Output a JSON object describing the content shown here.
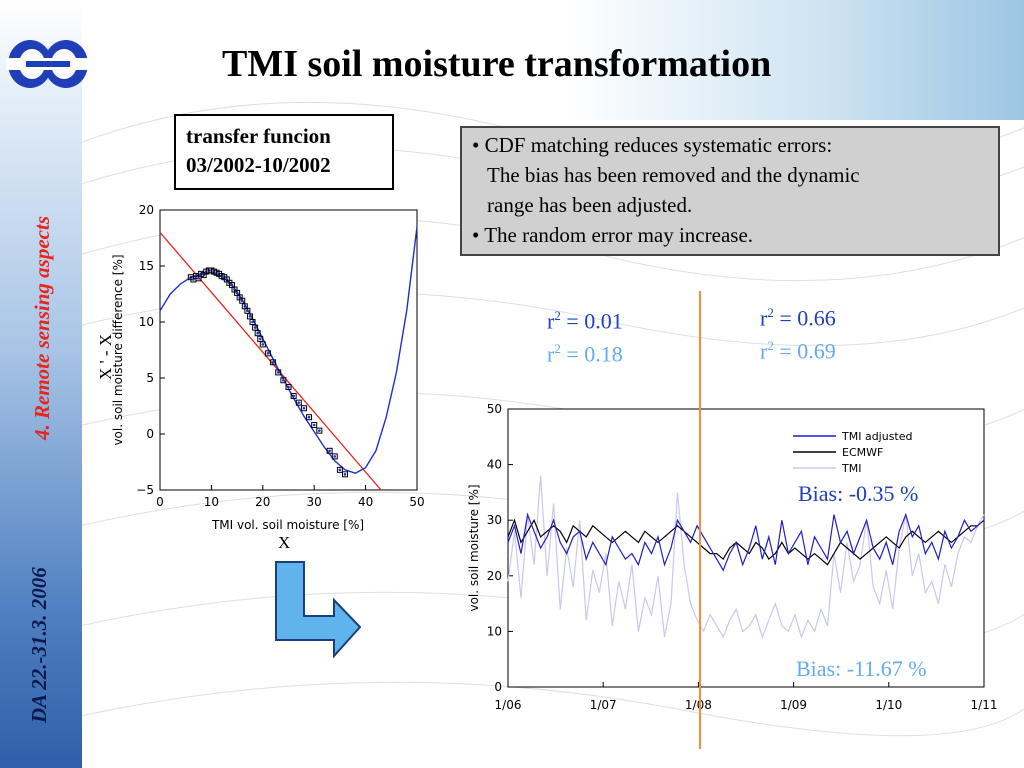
{
  "slide": {
    "title": "TMI soil moisture transformation",
    "side_section": "4. Remote sensing aspects",
    "side_date": "DA 22.-31.3. 2006"
  },
  "transfer_box": {
    "line1": "transfer funcion",
    "line2": "03/2002-10/2002"
  },
  "notes": [
    "• CDF matching reduces systematic errors:",
    "The bias has been removed and the dynamic",
    "range has been adjusted.",
    "• The random error may increase."
  ],
  "stats": {
    "r2_prefix": "r",
    "r2_suffix": " = ",
    "before_dark": "0.01",
    "before_light": "0.18",
    "after_dark": "0.66",
    "after_light": "0.69",
    "bias_adjusted": "Bias: -0.35 %",
    "bias_raw": "Bias: -11.67 %"
  },
  "annotations": {
    "x_label": "X",
    "y_label": "X ' - X"
  },
  "colors": {
    "adjusted": "#1f1fc8",
    "ecmwf": "#000000",
    "tmi": "#c8c8f0",
    "regression": "#e8241c",
    "marker": "#1f2fd0",
    "divider": "#f0903a",
    "arrow_fill": "#5fb4ee"
  },
  "chart_data": [
    {
      "type": "scatter",
      "xlabel": "TMI vol. soil moisture [%]",
      "ylabel": "vol. soil moisture difference [%]",
      "xlim": [
        0,
        50
      ],
      "ylim": [
        -5,
        20
      ],
      "xticks": [
        0,
        10,
        20,
        30,
        40,
        50
      ],
      "yticks": [
        -5,
        0,
        5,
        10,
        15,
        20
      ],
      "points": [
        [
          6,
          14.0
        ],
        [
          6.5,
          13.8
        ],
        [
          7,
          14.1
        ],
        [
          7.5,
          13.9
        ],
        [
          8,
          14.3
        ],
        [
          8.5,
          14.2
        ],
        [
          9,
          14.5
        ],
        [
          9.5,
          14.6
        ],
        [
          10,
          14.6
        ],
        [
          10.5,
          14.5
        ],
        [
          11,
          14.4
        ],
        [
          11.5,
          14.3
        ],
        [
          12,
          14.1
        ],
        [
          12.5,
          14.0
        ],
        [
          13,
          13.8
        ],
        [
          13.5,
          13.5
        ],
        [
          14,
          13.3
        ],
        [
          14.5,
          12.9
        ],
        [
          15,
          12.6
        ],
        [
          15.5,
          12.2
        ],
        [
          16,
          11.9
        ],
        [
          16.5,
          11.4
        ],
        [
          17,
          11.0
        ],
        [
          17.5,
          10.5
        ],
        [
          18,
          10.0
        ],
        [
          18.5,
          9.5
        ],
        [
          19,
          9.0
        ],
        [
          19.5,
          8.5
        ],
        [
          20,
          8.0
        ],
        [
          21,
          7.2
        ],
        [
          22,
          6.4
        ],
        [
          23,
          5.5
        ],
        [
          24,
          4.8
        ],
        [
          25,
          4.2
        ],
        [
          26,
          3.4
        ],
        [
          27,
          2.8
        ],
        [
          28,
          2.3
        ],
        [
          29,
          1.5
        ],
        [
          30,
          0.8
        ],
        [
          31,
          0.3
        ],
        [
          33,
          -1.5
        ],
        [
          34,
          -2.0
        ],
        [
          35,
          -3.2
        ],
        [
          36,
          -3.6
        ]
      ],
      "regression_line": {
        "x": [
          0,
          43
        ],
        "y": [
          18.0,
          -5.0
        ]
      },
      "transfer_curve": [
        [
          0,
          11.0
        ],
        [
          2,
          12.5
        ],
        [
          4,
          13.4
        ],
        [
          6,
          14.0
        ],
        [
          8,
          14.3
        ],
        [
          10,
          14.4
        ],
        [
          12,
          14.1
        ],
        [
          14,
          13.3
        ],
        [
          16,
          12.0
        ],
        [
          18,
          10.3
        ],
        [
          20,
          8.5
        ],
        [
          22,
          6.7
        ],
        [
          24,
          4.9
        ],
        [
          26,
          3.2
        ],
        [
          28,
          1.6
        ],
        [
          30,
          0.2
        ],
        [
          32,
          -1.2
        ],
        [
          34,
          -2.4
        ],
        [
          36,
          -3.2
        ],
        [
          38,
          -3.5
        ],
        [
          40,
          -3.0
        ],
        [
          42,
          -1.5
        ],
        [
          44,
          1.5
        ],
        [
          46,
          5.5
        ],
        [
          48,
          11.0
        ],
        [
          50,
          18.5
        ]
      ]
    },
    {
      "type": "line",
      "ylabel": "vol. soil moisture [%]",
      "xlabel": "",
      "ylim": [
        0,
        50
      ],
      "yticks": [
        0,
        10,
        20,
        30,
        40,
        50
      ],
      "x_tick_labels": [
        "1/06",
        "1/07",
        "1/08",
        "1/09",
        "1/10",
        "1/11"
      ],
      "x_range_months": [
        0,
        5
      ],
      "divider_at_month": 2.02,
      "legend_position": "top-right",
      "series": [
        {
          "name": "TMI adjusted",
          "values": [
            26,
            29,
            24,
            31,
            28,
            25,
            27,
            30,
            26,
            24,
            27,
            28,
            23,
            26,
            24,
            22,
            27,
            25,
            23,
            24,
            22,
            26,
            24,
            27,
            22,
            25,
            30,
            28,
            26,
            29,
            27,
            25,
            23,
            21,
            24,
            26,
            22,
            25,
            29,
            23,
            27,
            22,
            30,
            24,
            26,
            28,
            22,
            27,
            25,
            23,
            31,
            26,
            28,
            24,
            27,
            30,
            25,
            23,
            26,
            22,
            28,
            31,
            27,
            29,
            24,
            26,
            23,
            28,
            25,
            27,
            30,
            28,
            29,
            30
          ]
        },
        {
          "name": "ECMWF",
          "values": [
            27,
            30,
            26,
            28,
            30,
            27,
            28,
            29,
            28,
            26,
            29,
            28,
            27,
            29,
            28,
            27,
            26,
            27,
            28,
            27,
            26,
            28,
            27,
            26,
            27,
            28,
            29,
            28,
            27,
            26,
            25,
            24,
            24,
            23,
            25,
            26,
            25,
            24,
            26,
            25,
            23,
            24,
            26,
            24,
            25,
            24,
            23,
            24,
            23,
            22,
            24,
            26,
            25,
            24,
            23,
            24,
            25,
            26,
            27,
            26,
            25,
            27,
            28,
            27,
            26,
            27,
            28,
            27,
            26,
            27,
            28,
            29,
            29,
            30
          ]
        },
        {
          "name": "TMI",
          "values": [
            19,
            28,
            16,
            31,
            22,
            38,
            20,
            33,
            14,
            25,
            18,
            30,
            12,
            21,
            17,
            24,
            11,
            19,
            14,
            22,
            10,
            16,
            13,
            20,
            9,
            15,
            35,
            22,
            15,
            12,
            10,
            13,
            11,
            9,
            12,
            14,
            10,
            11,
            13,
            9,
            12,
            15,
            11,
            10,
            13,
            9,
            12,
            10,
            14,
            11,
            24,
            17,
            26,
            19,
            22,
            30,
            18,
            15,
            21,
            14,
            25,
            31,
            20,
            24,
            17,
            19,
            15,
            22,
            18,
            24,
            27,
            26,
            29,
            31
          ]
        }
      ]
    }
  ]
}
